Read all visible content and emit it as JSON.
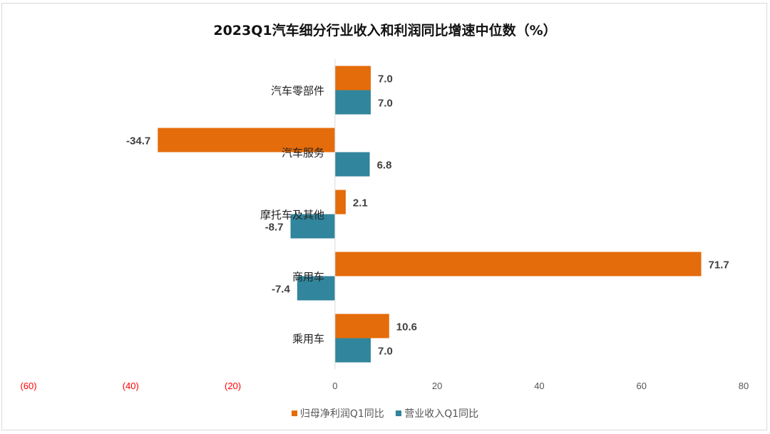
{
  "chart_data": {
    "type": "bar",
    "orientation": "horizontal",
    "title": "2023Q1汽车细分行业收入和利润同比增速中位数（%）",
    "categories": [
      "汽车零部件",
      "汽车服务",
      "摩托车及其他",
      "商用车",
      "乘用车"
    ],
    "series": [
      {
        "name": "归母净利润Q1同比",
        "color": "#E46C0A",
        "values": [
          7.0,
          -34.7,
          2.1,
          71.7,
          10.6
        ]
      },
      {
        "name": "营业收入Q1同比",
        "color": "#31859C",
        "values": [
          7.0,
          6.8,
          -8.7,
          -7.4,
          7.0
        ]
      }
    ],
    "xlim": [
      -60,
      80
    ],
    "xticks": [
      -60,
      -40,
      -20,
      0,
      20,
      40,
      60,
      80
    ],
    "xtick_labels": [
      "(60)",
      "(40)",
      "(20)",
      "0",
      "20",
      "40",
      "60",
      "80"
    ],
    "negative_tick_color": "#FF0000",
    "grid": false,
    "legend_position": "bottom"
  }
}
